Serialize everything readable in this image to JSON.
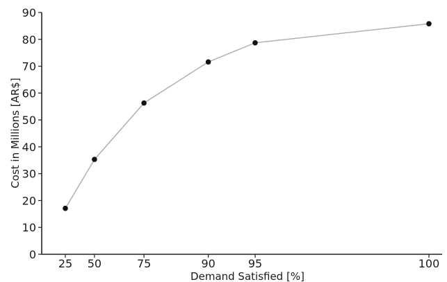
{
  "chart_data": {
    "type": "line",
    "title": "",
    "xlabel": "Demand Satisfied [%]",
    "ylabel": "Cost in Millions [AR$]",
    "x_ticks": [
      25,
      50,
      75,
      90,
      95,
      100
    ],
    "y_ticks": [
      0,
      10,
      20,
      30,
      40,
      50,
      60,
      70,
      80,
      90
    ],
    "x_scale": "log(100 - x) [reversed-spacing axis]",
    "ylim": [
      0,
      90
    ],
    "grid": false,
    "legend": "none",
    "line_color": "#b0b0b0",
    "marker_color": "#111111",
    "series": [
      {
        "x": [
          25,
          50,
          75,
          90,
          95,
          100
        ],
        "y": [
          17.1,
          35.3,
          56.3,
          71.6,
          78.7,
          85.8
        ]
      }
    ]
  }
}
